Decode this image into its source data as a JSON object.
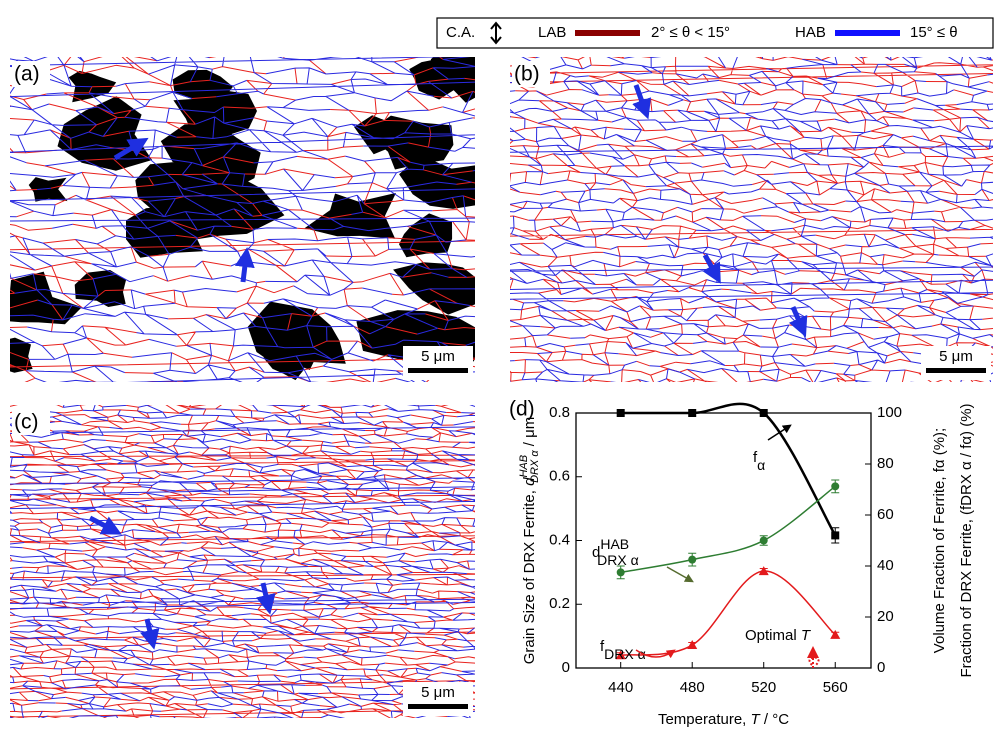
{
  "legend": {
    "ca": "C.A.",
    "lab": "LAB",
    "lab_range": "2° ≤ θ < 15°",
    "hab": "HAB",
    "hab_range": "15° ≤ θ"
  },
  "panels": [
    {
      "label": "(a)",
      "scale_bar": "5 μm"
    },
    {
      "label": "(b)",
      "scale_bar": "5 μm"
    },
    {
      "label": "(c)",
      "scale_bar": "5 μm"
    }
  ],
  "chart_data": {
    "type": "line",
    "label": "(d)",
    "x": [
      440,
      480,
      520,
      560
    ],
    "xlim": [
      415,
      580
    ],
    "xticks": [
      440,
      480,
      520,
      560
    ],
    "xlabel": {
      "text": "Temperature, ",
      "symbol": "T",
      "unit": " / °C"
    },
    "ylim": [
      0,
      0.8
    ],
    "yticks": [
      0,
      {
        "value": 0.2,
        "label": "0.2"
      },
      {
        "value": 0.4,
        "label": "0.4"
      },
      {
        "value": 0.6,
        "label": "0.6"
      },
      {
        "value": 0.8,
        "label": "0.8"
      }
    ],
    "y2lim": [
      0,
      100
    ],
    "y2ticks": [
      0,
      20,
      40,
      60,
      80,
      100
    ],
    "ylabel": {
      "text": "Grain Size of DRX Ferrite, ",
      "symbol": "d",
      "sup": "HAB",
      "sub": "DRX α",
      "unit": " / μm"
    },
    "y2label": [
      "Volume Fraction of Ferrite, fα (%);",
      "Fraction of DRX Ferrite, (fDRX α / fα) (%)"
    ],
    "series": [
      {
        "name": {
          "symbol": "f",
          "sub": "α"
        },
        "color": "#000000",
        "marker": "square",
        "axis": "y2",
        "values": [
          100,
          100,
          100,
          52
        ],
        "errors": [
          null,
          null,
          null,
          3
        ]
      },
      {
        "name": {
          "symbol": "d",
          "sup": "HAB",
          "sub": "DRX α"
        },
        "color": "#2e7d32",
        "marker": "circle",
        "axis": "y",
        "values": [
          0.3,
          0.34,
          0.4,
          0.57
        ],
        "errors": [
          0.02,
          0.02,
          0.015,
          0.02
        ]
      },
      {
        "name": {
          "symbol": "f",
          "sub": "DRX α"
        },
        "color": "#e31a1c",
        "marker": "triangle",
        "axis": "y2",
        "values": [
          5,
          9,
          38,
          13
        ],
        "errors": [
          1,
          1,
          1,
          1
        ]
      }
    ],
    "annotation": {
      "text": "Optimal ",
      "symbol": "T"
    }
  }
}
